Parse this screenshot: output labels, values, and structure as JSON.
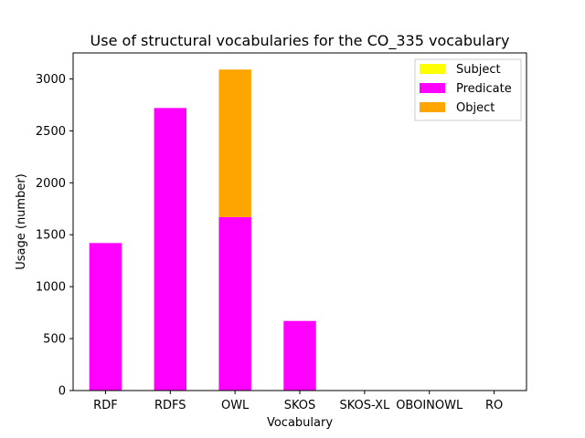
{
  "chart_data": {
    "type": "bar",
    "stacked": true,
    "title": "Use of structural vocabularies for the CO_335 vocabulary",
    "xlabel": "Vocabulary",
    "ylabel": "Usage (number)",
    "categories": [
      "RDF",
      "RDFS",
      "OWL",
      "SKOS",
      "SKOS-XL",
      "OBOINOWL",
      "RO"
    ],
    "series": [
      {
        "name": "Subject",
        "color": "#ffff00",
        "values": [
          0,
          0,
          0,
          0,
          0,
          0,
          0
        ]
      },
      {
        "name": "Predicate",
        "color": "#ff00ff",
        "values": [
          1420,
          2720,
          1670,
          670,
          0,
          0,
          0
        ]
      },
      {
        "name": "Object",
        "color": "#ffa500",
        "values": [
          0,
          0,
          1420,
          0,
          0,
          0,
          0
        ]
      }
    ],
    "ylim": [
      0,
      3250
    ],
    "yticks": [
      0,
      500,
      1000,
      1500,
      2000,
      2500,
      3000
    ],
    "grid": false,
    "legend_position": "top-right"
  }
}
